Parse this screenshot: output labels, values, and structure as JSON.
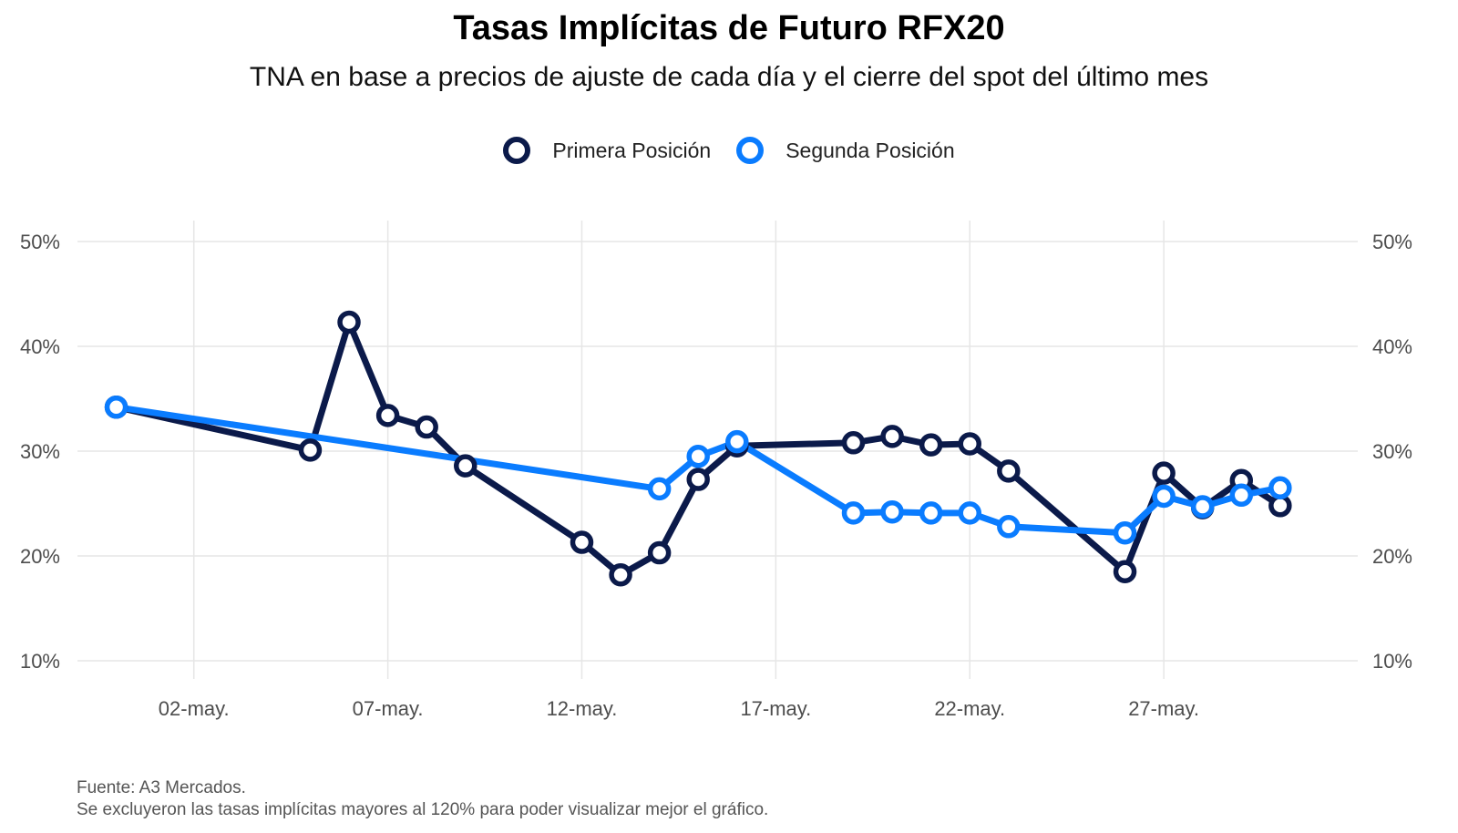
{
  "colors": {
    "primera": "#0b1a4a",
    "segunda": "#0a7cff",
    "grid": "#e6e6e6",
    "axis_text": "#4d4d4d"
  },
  "legend": {
    "primera_label": "Primera Posición",
    "segunda_label": "Segunda Posición"
  },
  "captions": {
    "source": "Fuente: A3 Mercados.",
    "note": "Se excluyeron las tasas implícitas mayores al 120% para poder visualizar mejor el gráfico."
  },
  "chart_data": {
    "type": "line",
    "title": "Tasas Implícitas de Futuro RFX20",
    "subtitle": "TNA en base a precios de ajuste de cada día y el cierre del spot del último mes",
    "xlabel": "",
    "ylabel": "",
    "ylim": [
      10,
      50
    ],
    "y_ticks": [
      10,
      20,
      30,
      40,
      50
    ],
    "y_tick_labels": [
      "10%",
      "20%",
      "30%",
      "40%",
      "50%"
    ],
    "y_axis_both_sides": true,
    "x_range": [
      "2024-04-29",
      "2024-06-01"
    ],
    "x_ticks": [
      "2024-05-02",
      "2024-05-07",
      "2024-05-12",
      "2024-05-17",
      "2024-05-22",
      "2024-05-27"
    ],
    "x_tick_labels": [
      "02-may.",
      "07-may.",
      "12-may.",
      "17-may.",
      "22-may.",
      "27-may."
    ],
    "grid": true,
    "legend_position": "top-center",
    "series": [
      {
        "name": "Primera Posición",
        "points": [
          {
            "x": "2024-04-30",
            "y": 34.2
          },
          {
            "x": "2024-05-05",
            "y": 30.1
          },
          {
            "x": "2024-05-06",
            "y": 42.3
          },
          {
            "x": "2024-05-07",
            "y": 33.4
          },
          {
            "x": "2024-05-08",
            "y": 32.3
          },
          {
            "x": "2024-05-09",
            "y": 28.6
          },
          {
            "x": "2024-05-12",
            "y": 21.3
          },
          {
            "x": "2024-05-13",
            "y": 18.2
          },
          {
            "x": "2024-05-14",
            "y": 20.3
          },
          {
            "x": "2024-05-15",
            "y": 27.3
          },
          {
            "x": "2024-05-16",
            "y": 30.5
          },
          {
            "x": "2024-05-19",
            "y": 30.8
          },
          {
            "x": "2024-05-20",
            "y": 31.4
          },
          {
            "x": "2024-05-21",
            "y": 30.6
          },
          {
            "x": "2024-05-22",
            "y": 30.7
          },
          {
            "x": "2024-05-23",
            "y": 28.1
          },
          {
            "x": "2024-05-26",
            "y": 18.5
          },
          {
            "x": "2024-05-27",
            "y": 27.9
          },
          {
            "x": "2024-05-28",
            "y": 24.6
          },
          {
            "x": "2024-05-29",
            "y": 27.2
          },
          {
            "x": "2024-05-30",
            "y": 24.8
          }
        ]
      },
      {
        "name": "Segunda Posición",
        "points": [
          {
            "x": "2024-04-30",
            "y": 34.2
          },
          {
            "x": "2024-05-14",
            "y": 26.4
          },
          {
            "x": "2024-05-15",
            "y": 29.5
          },
          {
            "x": "2024-05-16",
            "y": 30.9
          },
          {
            "x": "2024-05-19",
            "y": 24.1
          },
          {
            "x": "2024-05-20",
            "y": 24.2
          },
          {
            "x": "2024-05-21",
            "y": 24.1
          },
          {
            "x": "2024-05-22",
            "y": 24.1
          },
          {
            "x": "2024-05-23",
            "y": 22.8
          },
          {
            "x": "2024-05-26",
            "y": 22.2
          },
          {
            "x": "2024-05-27",
            "y": 25.7
          },
          {
            "x": "2024-05-28",
            "y": 24.7
          },
          {
            "x": "2024-05-29",
            "y": 25.8
          },
          {
            "x": "2024-05-30",
            "y": 26.5
          }
        ]
      }
    ]
  }
}
